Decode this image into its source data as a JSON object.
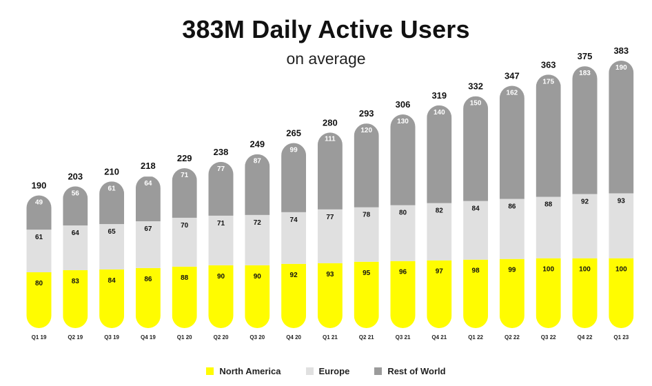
{
  "chart_data": {
    "type": "bar",
    "title": "383M Daily Active Users",
    "subtitle": "on average",
    "stacked": true,
    "categories": [
      "Q1 19",
      "Q2 19",
      "Q3 19",
      "Q4 19",
      "Q1 20",
      "Q2 20",
      "Q3 20",
      "Q4 20",
      "Q1 21",
      "Q2 21",
      "Q3 21",
      "Q4 21",
      "Q1 22",
      "Q2 22",
      "Q3 22",
      "Q4 22",
      "Q1 23"
    ],
    "totals": [
      190,
      203,
      210,
      218,
      229,
      238,
      249,
      265,
      280,
      293,
      306,
      319,
      332,
      347,
      363,
      375,
      383
    ],
    "series": [
      {
        "name": "North America",
        "color": "#fffc00",
        "values": [
          80,
          83,
          84,
          86,
          88,
          90,
          90,
          92,
          93,
          95,
          96,
          97,
          98,
          99,
          100,
          100,
          100
        ]
      },
      {
        "name": "Europe",
        "color": "#e0e0e0",
        "values": [
          61,
          64,
          65,
          67,
          70,
          71,
          72,
          74,
          77,
          78,
          80,
          82,
          84,
          86,
          88,
          92,
          93
        ]
      },
      {
        "name": "Rest of World",
        "color": "#9b9b9b",
        "values": [
          49,
          56,
          61,
          64,
          71,
          77,
          87,
          99,
          111,
          120,
          130,
          140,
          150,
          162,
          175,
          183,
          190
        ]
      }
    ],
    "ylim": [
      0,
      383
    ],
    "grid": false,
    "legend_position": "bottom-center"
  }
}
